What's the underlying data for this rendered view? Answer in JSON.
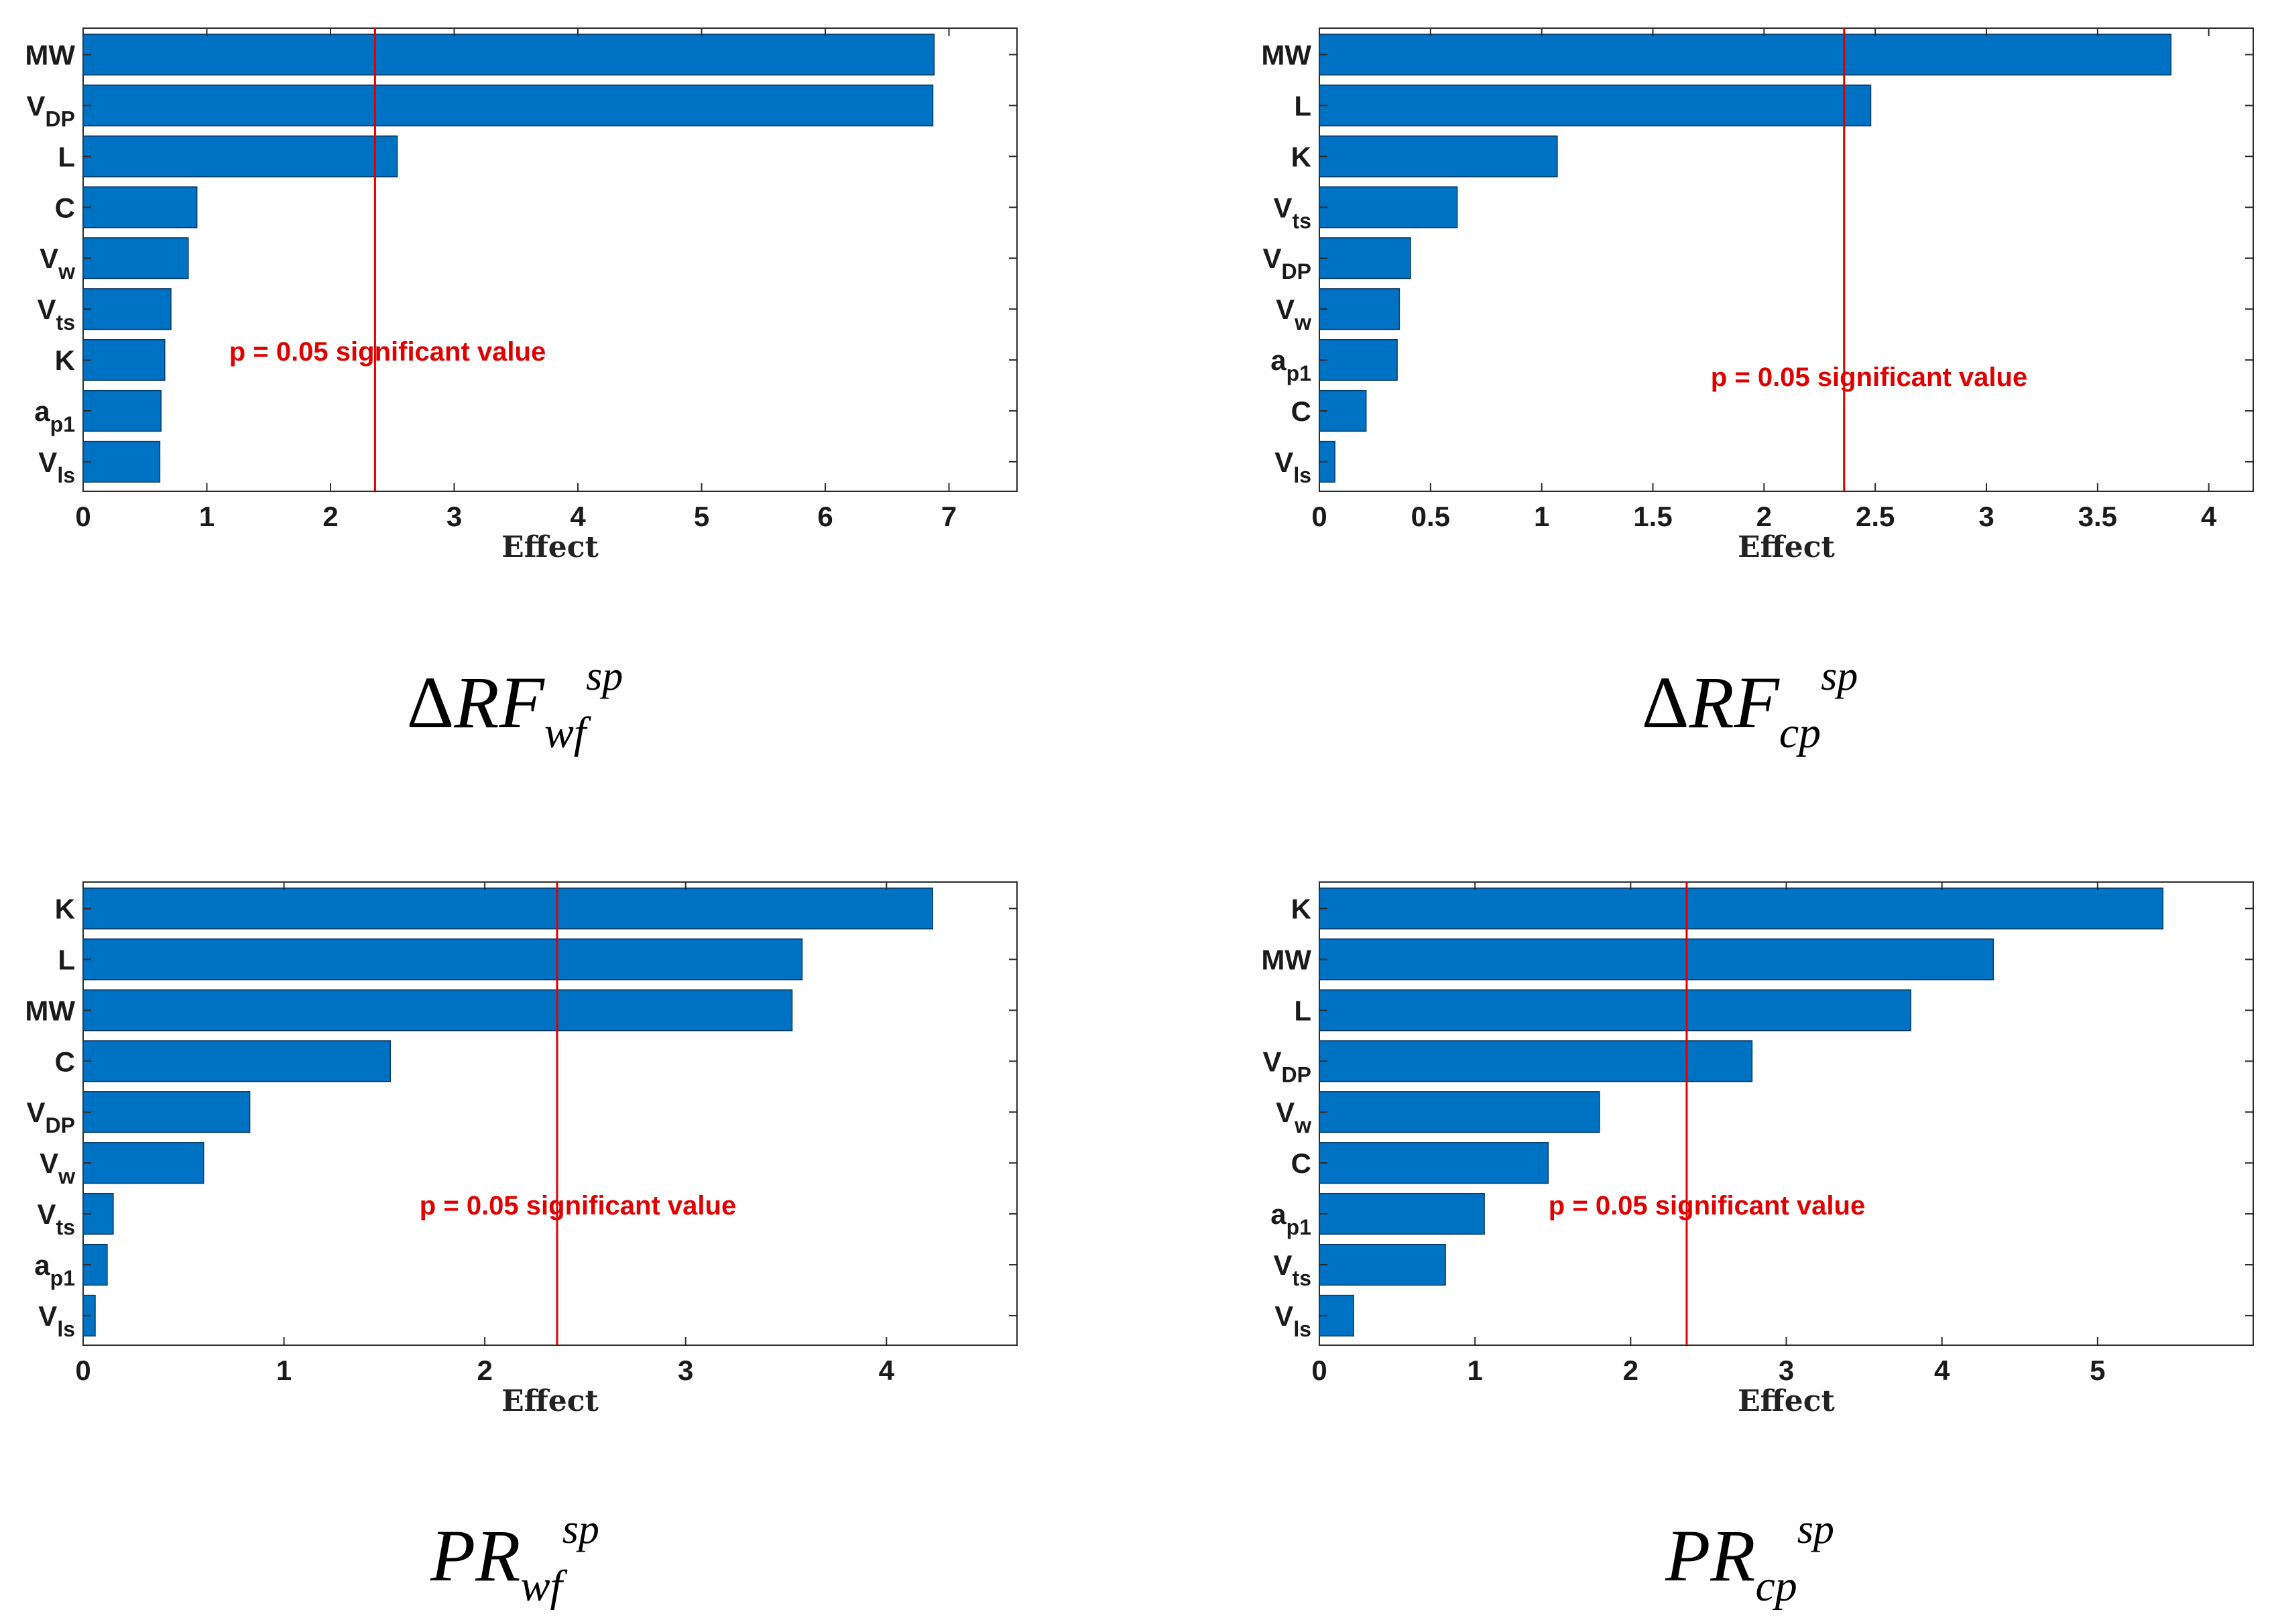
{
  "charts": [
    {
      "type": "bar",
      "orientation": "horizontal",
      "title": "",
      "xlabel": "Effect",
      "ylabel": "",
      "xlim": [
        0,
        7.55
      ],
      "xticks": [
        0,
        1,
        2,
        3,
        4,
        5,
        6,
        7
      ],
      "xtick_labels": [
        "0",
        "1",
        "2",
        "3",
        "4",
        "5",
        "6",
        "7"
      ],
      "categories": [
        {
          "main": "MW",
          "sub": ""
        },
        {
          "main": "V",
          "sub": "DP"
        },
        {
          "main": "L",
          "sub": ""
        },
        {
          "main": "C",
          "sub": ""
        },
        {
          "main": "V",
          "sub": "w"
        },
        {
          "main": "V",
          "sub": "ts"
        },
        {
          "main": "K",
          "sub": ""
        },
        {
          "main": "a",
          "sub": "p1"
        },
        {
          "main": "V",
          "sub": "ls"
        }
      ],
      "values": [
        6.88,
        6.87,
        2.54,
        0.92,
        0.85,
        0.71,
        0.66,
        0.63,
        0.62
      ],
      "threshold": 2.36,
      "threshold_label": "p = 0.05 significant value",
      "caption": {
        "prefix": "Δ",
        "main": "RF",
        "sub": "wf",
        "sup": "sp"
      }
    },
    {
      "type": "bar",
      "orientation": "horizontal",
      "title": "",
      "xlabel": "Effect",
      "ylabel": "",
      "xlim": [
        0,
        4.2
      ],
      "xticks": [
        0,
        0.5,
        1,
        1.5,
        2,
        2.5,
        3,
        3.5,
        4
      ],
      "xtick_labels": [
        "0",
        "0.5",
        "1",
        "1.5",
        "2",
        "2.5",
        "3",
        "3.5",
        "4"
      ],
      "categories": [
        {
          "main": "MW",
          "sub": ""
        },
        {
          "main": "L",
          "sub": ""
        },
        {
          "main": "K",
          "sub": ""
        },
        {
          "main": "V",
          "sub": "ts"
        },
        {
          "main": "V",
          "sub": "DP"
        },
        {
          "main": "V",
          "sub": "w"
        },
        {
          "main": "a",
          "sub": "p1"
        },
        {
          "main": "C",
          "sub": ""
        },
        {
          "main": "V",
          "sub": "ls"
        }
      ],
      "values": [
        3.83,
        2.48,
        1.07,
        0.62,
        0.41,
        0.36,
        0.35,
        0.21,
        0.07
      ],
      "threshold": 2.36,
      "threshold_label": "p = 0.05  significant value",
      "caption": {
        "prefix": "Δ",
        "main": "RF",
        "sub": "cp",
        "sup": "sp"
      }
    },
    {
      "type": "bar",
      "orientation": "horizontal",
      "title": "",
      "xlabel": "Effect",
      "ylabel": "",
      "xlim": [
        0,
        4.65
      ],
      "xticks": [
        0,
        1,
        2,
        3,
        4
      ],
      "xtick_labels": [
        "0",
        "1",
        "2",
        "3",
        "4"
      ],
      "categories": [
        {
          "main": "K",
          "sub": ""
        },
        {
          "main": "L",
          "sub": ""
        },
        {
          "main": "MW",
          "sub": ""
        },
        {
          "main": "C",
          "sub": ""
        },
        {
          "main": "V",
          "sub": "DP"
        },
        {
          "main": "V",
          "sub": "w"
        },
        {
          "main": "V",
          "sub": "ts"
        },
        {
          "main": "a",
          "sub": "p1"
        },
        {
          "main": "V",
          "sub": "ls"
        }
      ],
      "values": [
        4.23,
        3.58,
        3.53,
        1.53,
        0.83,
        0.6,
        0.15,
        0.12,
        0.06
      ],
      "threshold": 2.36,
      "threshold_label": "p = 0.05 significant value",
      "caption": {
        "prefix": "",
        "main": "PR",
        "sub": "wf",
        "sup": "sp"
      }
    },
    {
      "type": "bar",
      "orientation": "horizontal",
      "title": "",
      "xlabel": "Effect",
      "ylabel": "",
      "xlim": [
        0,
        6.0
      ],
      "xticks": [
        0,
        1,
        2,
        3,
        4,
        5
      ],
      "xtick_labels": [
        "0",
        "1",
        "2",
        "3",
        "4",
        "5"
      ],
      "categories": [
        {
          "main": "K",
          "sub": ""
        },
        {
          "main": "MW",
          "sub": ""
        },
        {
          "main": "L",
          "sub": ""
        },
        {
          "main": "V",
          "sub": "DP"
        },
        {
          "main": "V",
          "sub": "w"
        },
        {
          "main": "C",
          "sub": ""
        },
        {
          "main": "a",
          "sub": "p1"
        },
        {
          "main": "V",
          "sub": "ts"
        },
        {
          "main": "V",
          "sub": "ls"
        }
      ],
      "values": [
        5.42,
        4.33,
        3.8,
        2.78,
        1.8,
        1.47,
        1.06,
        0.81,
        0.22
      ],
      "threshold": 2.36,
      "threshold_label": "p = 0.05 significant value",
      "caption": {
        "prefix": "",
        "main": "PR",
        "sub": "cp",
        "sup": "sp"
      }
    }
  ],
  "colors": {
    "bar_fill": "#0072C3",
    "bar_edge": "#0a3a66",
    "threshold": "#e00000",
    "axis": "#2b2b2b"
  }
}
